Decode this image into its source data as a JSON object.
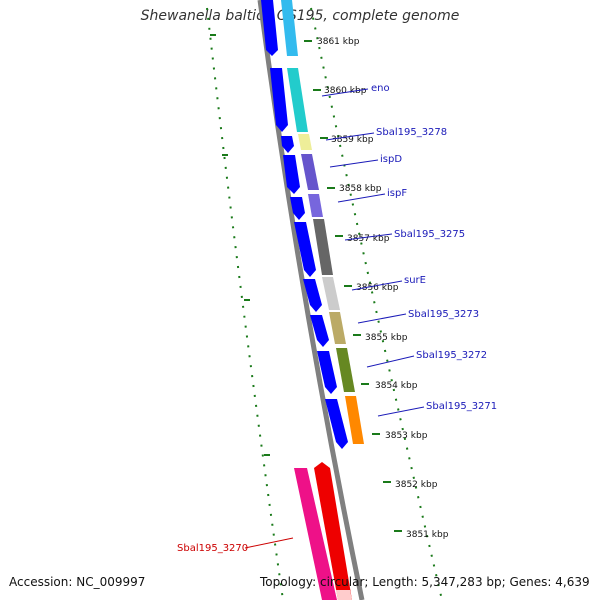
{
  "title": "Shewanella baltica OS195, complete genome",
  "accession": "Accession: NC_009997",
  "summary": "Topology: circular; Length: 5,347,283 bp; Genes: 4,639",
  "colors": {
    "backbone": "#808080",
    "cds": "#0000ff",
    "tick_green": "#1a7a1a",
    "label_blue": "#1a1ab8",
    "label_red": "#cc0000"
  },
  "kbp_ticks": [
    "3861 kbp",
    "3860 kbp",
    "3859 kbp",
    "3858 kbp",
    "3857 kbp",
    "3856 kbp",
    "3855 kbp",
    "3854 kbp",
    "3853 kbp",
    "3852 kbp",
    "3851 kbp"
  ],
  "gene_labels": [
    "eno",
    "Sbal195_3278",
    "ispD",
    "ispF",
    "Sbal195_3275",
    "surE",
    "Sbal195_3273",
    "Sbal195_3272",
    "Sbal195_3271",
    "Sbal195_3270"
  ]
}
